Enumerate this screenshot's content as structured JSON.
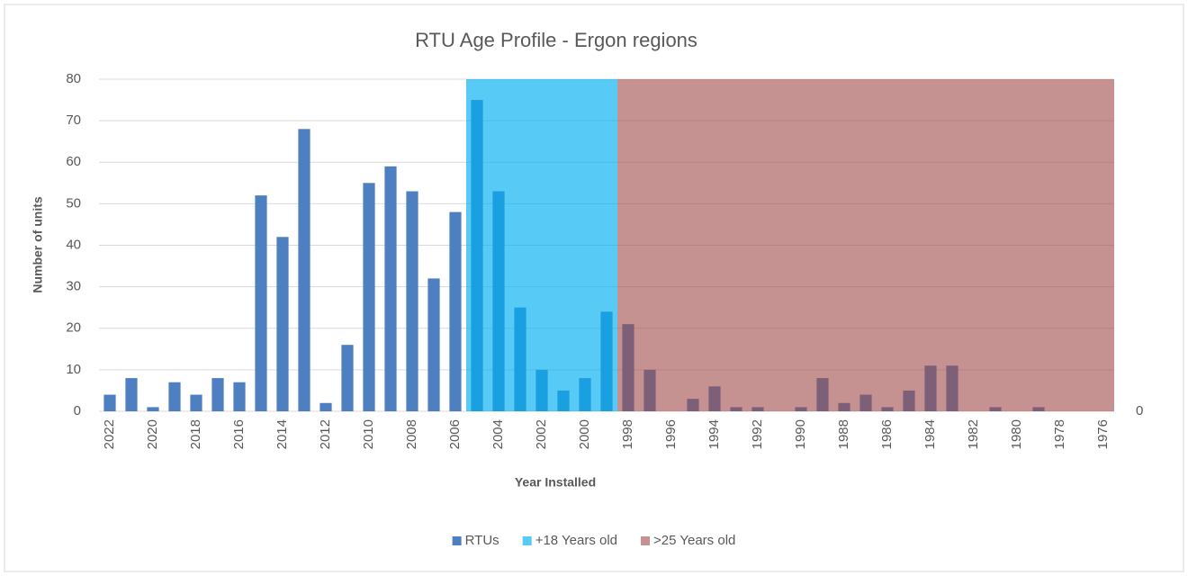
{
  "chart_data": {
    "type": "bar",
    "title": "RTU Age Profile - Ergon regions",
    "x_label": "Year Installed",
    "y_label": "Number of units",
    "categories": [
      "2022",
      null,
      "2020",
      null,
      "2018",
      null,
      "2016",
      null,
      "2014",
      null,
      "2012",
      null,
      "2010",
      null,
      "2008",
      null,
      "2006",
      null,
      "2004",
      null,
      "2002",
      null,
      "2000",
      null,
      "1998",
      null,
      "1996",
      null,
      "1994",
      null,
      "1992",
      null,
      "1990",
      null,
      "1988",
      null,
      "1986",
      null,
      "1984",
      null,
      "1982",
      null,
      "1980",
      null,
      "1978",
      null,
      "1976"
    ],
    "series": [
      {
        "name": "RTUs",
        "color": "#4e7fc0",
        "values": [
          4,
          8,
          1,
          7,
          4,
          8,
          7,
          52,
          42,
          68,
          2,
          16,
          55,
          59,
          53,
          32,
          48,
          75,
          53,
          25,
          10,
          5,
          8,
          24,
          21,
          10,
          0,
          3,
          6,
          1,
          1,
          0,
          1,
          8,
          2,
          4,
          1,
          5,
          11,
          11,
          0,
          1,
          0,
          1,
          0,
          0,
          0
        ]
      },
      {
        "name": "+18 Years old",
        "color": "#00b0f0",
        "axis": "y2",
        "values": [
          null,
          null,
          null,
          null,
          null,
          null,
          null,
          null,
          null,
          null,
          null,
          null,
          null,
          null,
          null,
          null,
          null,
          80,
          80,
          80,
          80,
          80,
          80,
          80,
          null,
          null,
          null,
          null,
          null,
          null,
          null,
          null,
          null,
          null,
          null,
          null,
          null,
          null,
          null,
          null,
          null,
          null,
          null,
          null,
          null,
          null,
          null
        ]
      },
      {
        "name": ">25 Years old",
        "color": "#9e4a48",
        "axis": "y2",
        "values": [
          null,
          null,
          null,
          null,
          null,
          null,
          null,
          null,
          null,
          null,
          null,
          null,
          null,
          null,
          null,
          null,
          null,
          null,
          null,
          null,
          null,
          null,
          null,
          null,
          80,
          80,
          80,
          80,
          80,
          80,
          80,
          80,
          80,
          80,
          80,
          80,
          80,
          80,
          80,
          80,
          80,
          80,
          80,
          80,
          80,
          80,
          80
        ]
      }
    ],
    "ylim": [
      0,
      80
    ],
    "yticks": [
      0,
      10,
      20,
      30,
      40,
      50,
      60,
      70,
      80
    ],
    "y2lim": [
      0,
      80
    ],
    "y2ticks": [
      0
    ],
    "grid": true,
    "legend": "bottom"
  }
}
